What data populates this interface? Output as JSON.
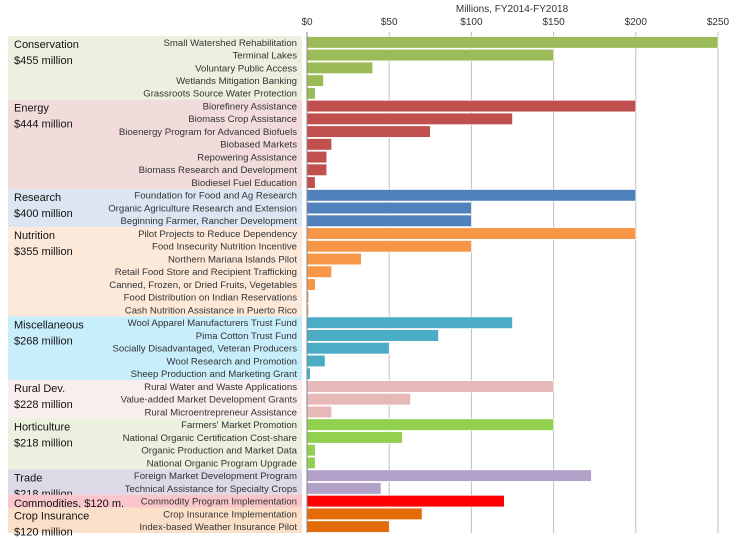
{
  "chart_data": {
    "type": "bar",
    "orientation": "horizontal",
    "xlabel": "Millions, FY2014-FY2018",
    "xlim": [
      0,
      250
    ],
    "x_ticks": [
      "$0",
      "$50",
      "$100",
      "$150",
      "$200",
      "$250"
    ],
    "x_tick_values": [
      0,
      50,
      100,
      150,
      200,
      250
    ],
    "grid": true,
    "groups": [
      {
        "name": "Conservation",
        "total": "$455 million",
        "color": "#9BBB59",
        "bg": "#EBF1DE",
        "items": [
          [
            "Small Watershed Rehabilitation",
            250
          ],
          [
            "Terminal Lakes",
            150
          ],
          [
            "Voluntary Public Access",
            40
          ],
          [
            "Wetlands Mitigation Banking",
            10
          ],
          [
            "Grassroots Source Water Protection",
            5
          ]
        ]
      },
      {
        "name": "Energy",
        "total": "$444 million",
        "color": "#C0504D",
        "bg": "#F2DCDB",
        "items": [
          [
            "Biorefinery Assistance",
            200
          ],
          [
            "Biomass Crop Assistance",
            125
          ],
          [
            "Bioenergy Program for Advanced Biofuels",
            75
          ],
          [
            "Biobased Markets",
            15
          ],
          [
            "Repowering Assistance",
            12
          ],
          [
            "Biomass Research and Development",
            12
          ],
          [
            "Biodiesel Fuel Education",
            5
          ]
        ]
      },
      {
        "name": "Research",
        "total": "$400 million",
        "color": "#4F81BD",
        "bg": "#DCE6F2",
        "items": [
          [
            "Foundation for Food and Ag Research",
            200
          ],
          [
            "Organic Agriculture Research and Extension",
            100
          ],
          [
            "Beginning Farmer, Rancher Development",
            100
          ]
        ]
      },
      {
        "name": "Nutrition",
        "total": "$355 million",
        "color": "#F79646",
        "bg": "#FDE9D9",
        "items": [
          [
            "Pilot Projects to Reduce Dependency",
            200
          ],
          [
            "Food Insecurity Nutrition Incentive",
            100
          ],
          [
            "Northern Mariana Islands Pilot",
            33
          ],
          [
            "Retail Food Store and Recipient Trafficking",
            15
          ],
          [
            "Canned, Frozen, or Dried Fruits, Vegetables",
            5
          ],
          [
            "Food Distribution on Indian Reservations",
            1
          ],
          [
            "Cash Nutrition Assistance in Puerto Rico",
            1
          ]
        ]
      },
      {
        "name": "Miscellaneous",
        "total": "$268 million",
        "color": "#4BACC6",
        "bg": "#C9EEFB",
        "items": [
          [
            "Wool Apparel Manufacturers Trust Fund",
            125
          ],
          [
            "Pima Cotton Trust Fund",
            80
          ],
          [
            "Socially Disadvantaged, Veteran Producers",
            50
          ],
          [
            "Wool Research and Promotion",
            11
          ],
          [
            "Sheep Production and Marketing Grant",
            2
          ]
        ]
      },
      {
        "name": "Rural Dev.",
        "total": "$228 million",
        "color": "#E6B9B8",
        "bg": "#F9EDED",
        "items": [
          [
            "Rural Water and Waste Applications",
            150
          ],
          [
            "Value-added Market Development Grants",
            63
          ],
          [
            "Rural Microentrepreneur Assistance",
            15
          ]
        ]
      },
      {
        "name": "Horticulture",
        "total": "$218 million",
        "color": "#92D050",
        "bg": "#EBF1DE",
        "items": [
          [
            "Farmers' Market Promotion",
            150
          ],
          [
            "National Organic Certification Cost-share",
            58
          ],
          [
            "Organic Production and Market Data",
            5
          ],
          [
            "National Organic Program Upgrade",
            5
          ]
        ]
      },
      {
        "name": "Trade",
        "total": "$218 million",
        "color": "#B1A0C7",
        "bg": "#DDD9E6",
        "items": [
          [
            "Foreign Market Development Program",
            173
          ],
          [
            "Technical Assistance for Specialty Crops",
            45
          ]
        ]
      },
      {
        "name": "Commodities, $120 m.",
        "total": "",
        "color": "#FF0000",
        "bg": "#F9C6CB",
        "items": [
          [
            "Commodity Program Implementation",
            120
          ]
        ]
      },
      {
        "name": "Crop Insurance",
        "total": "$120 million",
        "color": "#E36C09",
        "bg": "#FBE0C9",
        "items": [
          [
            "Crop Insurance Implementation",
            70
          ],
          [
            "Index-based Weather Insurance Pilot",
            50
          ]
        ]
      }
    ]
  }
}
